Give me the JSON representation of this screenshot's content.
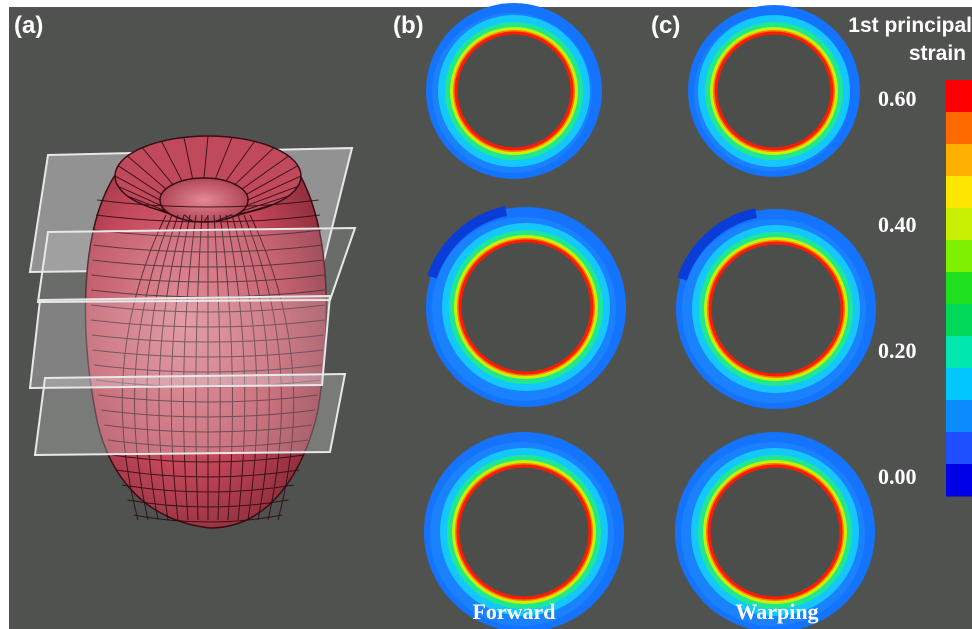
{
  "panels": {
    "a": "(a)",
    "b": "(b)",
    "c": "(c)"
  },
  "colorbar": {
    "title_line1": "1st principal",
    "title_line2": "strain",
    "ticks": [
      "0.60",
      "0.40",
      "0.20",
      "0.00"
    ],
    "colors": [
      "#ff0000",
      "#ff6a00",
      "#ffb000",
      "#ffe600",
      "#c8f000",
      "#7ff000",
      "#1ee01e",
      "#00d85a",
      "#00e8b0",
      "#00c8ff",
      "#0a8cff",
      "#1e50ff",
      "#0000e6"
    ]
  },
  "columns": {
    "forward": "Forward",
    "warping": "Warping"
  },
  "colors": {
    "background": "#505250",
    "mesh_red": "#c24a5c",
    "ring_outer": "#1473ff",
    "ring_inner": "#ff1a00"
  }
}
